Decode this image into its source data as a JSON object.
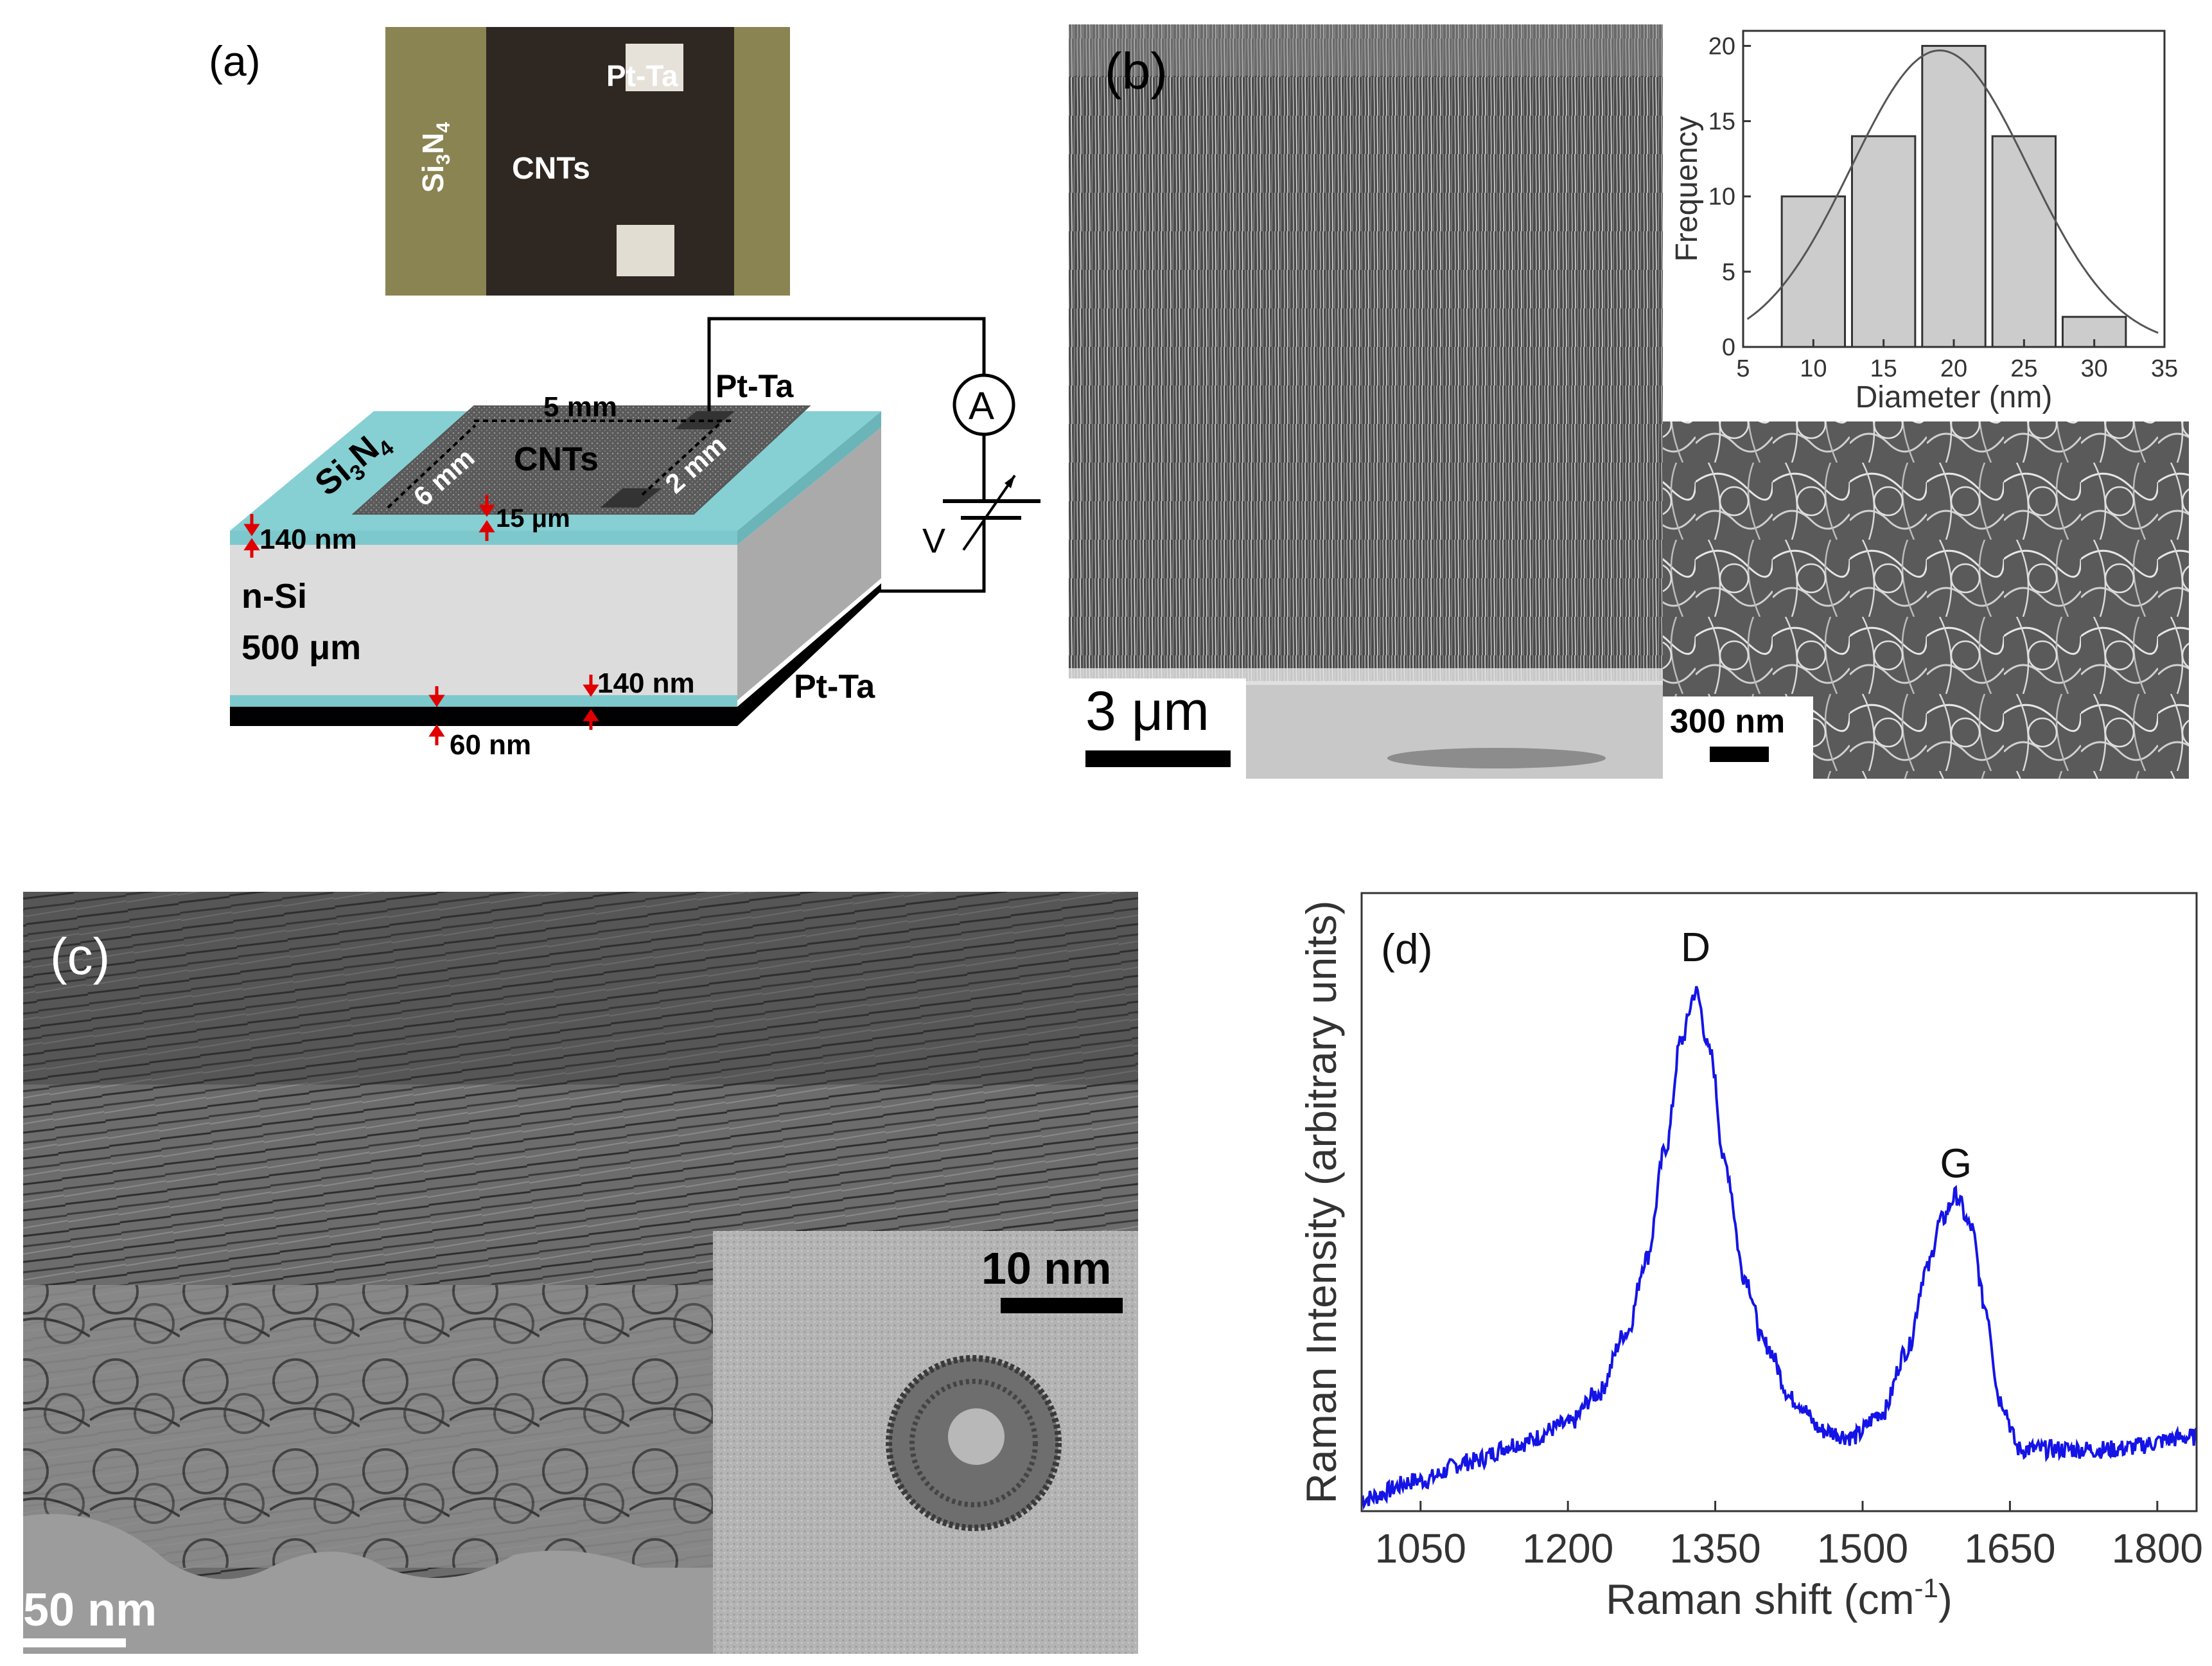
{
  "panel_a": {
    "label": "(a)",
    "photo": {
      "si3n4": "Si",
      "si3n4_sub": "3",
      "si3n4_n": "N",
      "si3n4_sub2": "4",
      "cnts": "CNTs",
      "pt_ta": "Pt-Ta"
    },
    "diagram": {
      "si3n4_top": "Si",
      "si3n4_top_sub": "3",
      "si3n4_top_n": "N",
      "si3n4_top_sub2": "4",
      "pt_ta_top": "Pt-Ta",
      "dim_5mm": "5 mm",
      "dim_6mm": "6 mm",
      "dim_2mm": "2 mm",
      "cnts": "CNTs",
      "dim_15um": "15 μm",
      "dim_140nm_top": "140 nm",
      "n_si": "n-Si",
      "n_si_thickness": "500 μm",
      "dim_140nm_bottom": "140 nm",
      "dim_60nm": "60 nm",
      "pt_ta_bottom": "Pt-Ta",
      "ammeter": "A",
      "voltage": "V"
    }
  },
  "panel_b": {
    "label": "(b)",
    "scale_main": "3 μm",
    "scale_inset": "300 nm"
  },
  "panel_c": {
    "label": "(c)",
    "scale_main": "50 nm",
    "scale_inset": "10 nm"
  },
  "chart_data": [
    {
      "type": "bar",
      "panel": "b-inset",
      "xlabel": "Diameter (nm)",
      "ylabel": "Frequency",
      "categories": [
        10,
        15,
        20,
        25,
        30
      ],
      "values": [
        10,
        14,
        20,
        14,
        2
      ],
      "bin_width": 4.5,
      "fit": {
        "type": "gaussian",
        "mean": 19,
        "sigma": 6.3,
        "peak": 19.7
      },
      "xlim": [
        5,
        35
      ],
      "ylim": [
        0,
        21
      ],
      "xticks": [
        "5",
        "10",
        "15",
        "20",
        "25",
        "30",
        "35"
      ],
      "yticks": [
        "0",
        "5",
        "10",
        "15",
        "20"
      ],
      "colors": {
        "bar": "#cccccc",
        "fit": "#555555"
      }
    },
    {
      "type": "line",
      "panel": "d",
      "xlabel": "Raman shift (cm",
      "xlabel_sup": "-1",
      "xlabel_end": ")",
      "ylabel": "Raman Intensity (arbitrary units)",
      "xlim": [
        990,
        1840
      ],
      "ylim": [
        0,
        1.0
      ],
      "xticks": [
        "1050",
        "1200",
        "1350",
        "1500",
        "1650",
        "1800"
      ],
      "annotations": [
        {
          "text": "D",
          "x": 1330,
          "y": 0.89
        },
        {
          "text": "G",
          "x": 1595,
          "y": 0.54
        }
      ],
      "series": [
        {
          "x": [
            990,
            1050,
            1100,
            1150,
            1200,
            1230,
            1260,
            1280,
            1300,
            1315,
            1330,
            1345,
            1360,
            1380,
            1400,
            1430,
            1460,
            1490,
            1520,
            1545,
            1565,
            1580,
            1595,
            1610,
            1625,
            1640,
            1660,
            1700,
            1750,
            1840
          ],
          "y": [
            0.02,
            0.05,
            0.08,
            0.11,
            0.14,
            0.19,
            0.29,
            0.41,
            0.59,
            0.76,
            0.84,
            0.74,
            0.56,
            0.38,
            0.27,
            0.18,
            0.13,
            0.12,
            0.16,
            0.26,
            0.39,
            0.47,
            0.51,
            0.46,
            0.33,
            0.18,
            0.1,
            0.1,
            0.1,
            0.12
          ]
        }
      ],
      "colors": {
        "line": "#1414e6"
      }
    }
  ]
}
